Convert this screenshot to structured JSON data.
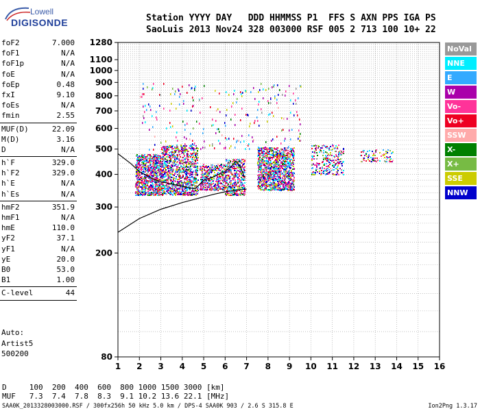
{
  "logo": {
    "line1": "Lowell",
    "line2": "DIGISONDE"
  },
  "header": {
    "line1": "Station YYYY DAY   DDD HHMMSS P1  FFS S AXN PPS IGA PS",
    "line2": "SaoLuis 2013 Nov24 328 003000 RSF 005 2 713 100 10+ 22"
  },
  "params": {
    "group1": [
      {
        "label": "foF2",
        "value": "7.000"
      },
      {
        "label": "foF1",
        "value": "N/A"
      },
      {
        "label": "foF1p",
        "value": "N/A"
      },
      {
        "label": "foE",
        "value": "N/A"
      },
      {
        "label": "foEp",
        "value": "0.48"
      },
      {
        "label": "fxI",
        "value": "9.10"
      },
      {
        "label": "foEs",
        "value": "N/A"
      },
      {
        "label": "fmin",
        "value": "2.55"
      }
    ],
    "group2": [
      {
        "label": "MUF(D)",
        "value": "22.09"
      },
      {
        "label": "M(D)",
        "value": "3.16"
      },
      {
        "label": "D",
        "value": "N/A"
      }
    ],
    "group3": [
      {
        "label": "h`F",
        "value": "329.0"
      },
      {
        "label": "h`F2",
        "value": "329.0"
      },
      {
        "label": "h`E",
        "value": "N/A"
      },
      {
        "label": "h`Es",
        "value": "N/A"
      }
    ],
    "group4": [
      {
        "label": "hmF2",
        "value": "351.9"
      },
      {
        "label": "hmF1",
        "value": "N/A"
      },
      {
        "label": "hmE",
        "value": "110.0"
      },
      {
        "label": "yF2",
        "value": "37.1"
      },
      {
        "label": "yF1",
        "value": "N/A"
      },
      {
        "label": "yE",
        "value": "20.0"
      },
      {
        "label": "B0",
        "value": "53.0"
      },
      {
        "label": "B1",
        "value": "1.00"
      }
    ],
    "group5": [
      {
        "label": "C-level",
        "value": "44"
      }
    ]
  },
  "autoblock": {
    "line1": "Auto:",
    "line2": "Artist5",
    "line3": "500200"
  },
  "legend": [
    {
      "label": "NoVal",
      "color": "#999999"
    },
    {
      "label": "NNE",
      "color": "#00eeff"
    },
    {
      "label": "E",
      "color": "#33aaff"
    },
    {
      "label": "W",
      "color": "#aa00aa"
    },
    {
      "label": "Vo-",
      "color": "#ff3399"
    },
    {
      "label": "Vo+",
      "color": "#ee0022"
    },
    {
      "label": "SSW",
      "color": "#ffaaaa"
    },
    {
      "label": "X-",
      "color": "#008000"
    },
    {
      "label": "X+",
      "color": "#77bb44"
    },
    {
      "label": "SSE",
      "color": "#cccc00"
    },
    {
      "label": "NNW",
      "color": "#0000cc"
    }
  ],
  "dmuf": {
    "d_line": "D     100  200  400  600  800 1000 1500 3000 [km]",
    "muf_line": "MUF   7.3  7.4  7.8  8.3  9.1 10.2 13.6 22.1 [MHz]"
  },
  "footer": "SAA0K_2013328003000.RSF / 300fx256h 50 kHz 5.0 km / DPS-4 SAA0K 903 / 2.6 S 315.8 E",
  "version": "Ion2Png 1.3.17",
  "chart_data": {
    "type": "scatter",
    "title": "",
    "xlabel": "",
    "ylabel": "",
    "xlim": [
      1,
      16
    ],
    "ylim": [
      80,
      1280
    ],
    "yscale": "log",
    "grid": true,
    "x_ticks": [
      "1",
      "2",
      "3",
      "4",
      "5",
      "6",
      "7",
      "8",
      "9",
      "10",
      "11",
      "12",
      "13",
      "14",
      "15",
      "16"
    ],
    "y_ticks": [
      "80",
      "200",
      "300",
      "400",
      "500",
      "600",
      "700",
      "800",
      "900",
      "1000",
      "1100",
      "1280"
    ],
    "clusters": [
      {
        "x": [
          1.8,
          3.0
        ],
        "h": [
          335,
          480
        ],
        "density": 900
      },
      {
        "x": [
          3.0,
          4.7
        ],
        "h": [
          335,
          520
        ],
        "density": 1100
      },
      {
        "x": [
          4.8,
          6.0
        ],
        "h": [
          350,
          440
        ],
        "density": 420
      },
      {
        "x": [
          6.0,
          6.9
        ],
        "h": [
          335,
          460
        ],
        "density": 420
      },
      {
        "x": [
          7.5,
          9.2
        ],
        "h": [
          350,
          510
        ],
        "density": 1200
      },
      {
        "x": [
          10.0,
          11.5
        ],
        "h": [
          400,
          520
        ],
        "density": 260
      },
      {
        "x": [
          12.3,
          13.8
        ],
        "h": [
          450,
          500
        ],
        "density": 90
      }
    ],
    "sparse_vertical": [
      {
        "x": [
          2.0,
          9.5
        ],
        "h": [
          500,
          900
        ],
        "density": 260
      }
    ],
    "traces": [
      {
        "name": "o-trace",
        "x": [
          1.0,
          2.0,
          3.0,
          4.0,
          5.0,
          5.5,
          6.0,
          6.5,
          6.8,
          7.0
        ],
        "h": [
          240,
          271,
          294,
          312,
          328,
          336,
          343,
          348,
          350,
          351
        ]
      },
      {
        "name": "x-trace",
        "x": [
          1.0,
          1.6,
          2.0,
          2.6,
          3.0,
          4.0,
          4.6,
          5.0,
          5.4,
          5.7,
          6.0,
          6.3,
          6.5,
          6.7,
          6.9
        ],
        "h": [
          480,
          440,
          410,
          385,
          375,
          360,
          352,
          380,
          390,
          400,
          410,
          430,
          450,
          430,
          390
        ]
      }
    ]
  }
}
